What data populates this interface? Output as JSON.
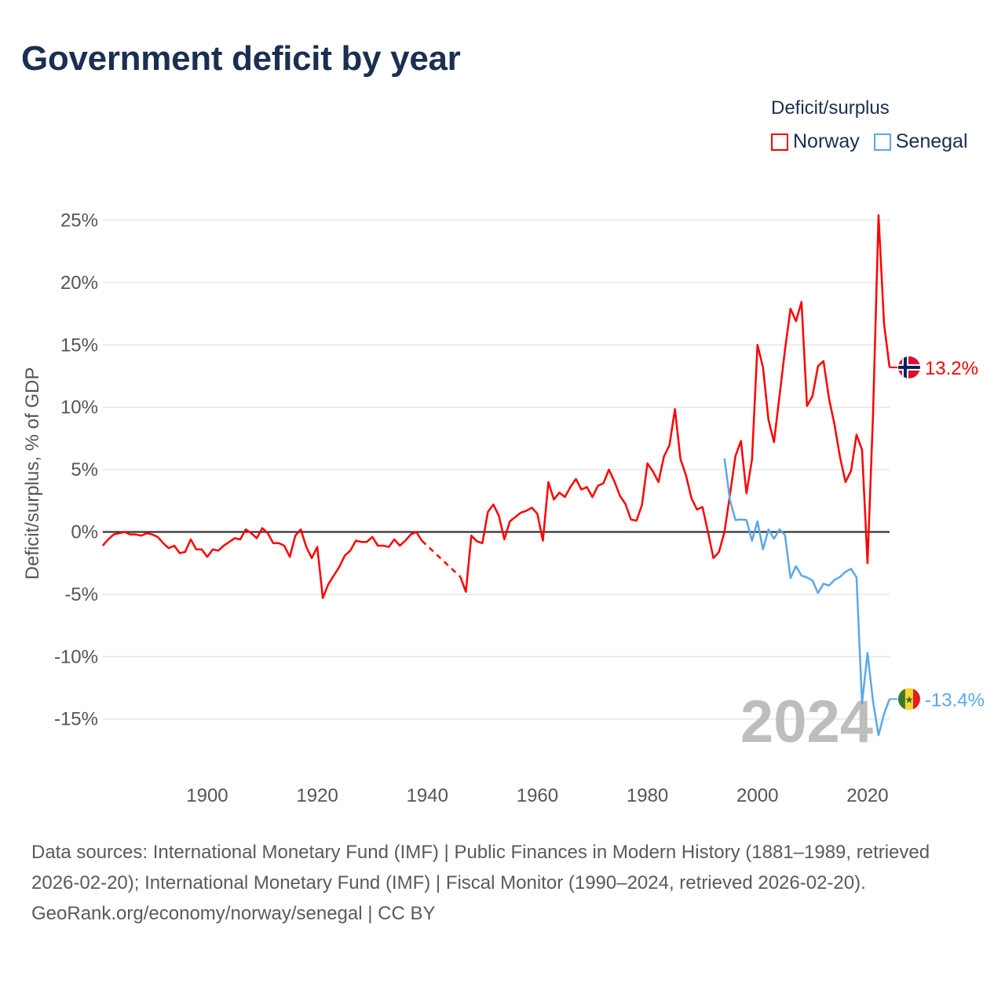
{
  "title": "Government deficit by year",
  "legend": {
    "title": "Deficit/surplus",
    "items": [
      {
        "name": "Norway",
        "color": "#ff0000"
      },
      {
        "name": "Senegal",
        "color": "#5aa8ea"
      }
    ]
  },
  "footer": {
    "sources": "Data sources: International Monetary Fund (IMF) | Public Finances in Modern History (1881–1989, retrieved 2026-02-20); International Monetary Fund (IMF) | Fiscal Monitor (1990–2024, retrieved 2026-02-20).",
    "credit": "GeoRank.org/economy/norway/senegal | CC BY"
  },
  "chart_data": {
    "type": "line",
    "title": "Government deficit by year",
    "xlabel": "",
    "ylabel": "Deficit/surplus, % of GDP",
    "xlim": [
      1881,
      2024
    ],
    "ylim": [
      -19,
      26
    ],
    "x_ticks": [
      1900,
      1920,
      1940,
      1960,
      1980,
      2000,
      2020
    ],
    "y_ticks": [
      25,
      20,
      15,
      10,
      5,
      0,
      -5,
      -10,
      -15
    ],
    "y_tick_labels": [
      "25%",
      "20%",
      "15%",
      "10%",
      "5%",
      "0%",
      "-5%",
      "-10%",
      "-15%"
    ],
    "x_tick_labels": [
      "1900",
      "1920",
      "1940",
      "1960",
      "1980",
      "2000",
      "2020"
    ],
    "grid": true,
    "legend_position": "top-right",
    "year_watermark": "2024",
    "series": [
      {
        "name": "Norway",
        "color": "#ff0000",
        "end_label": "13.2%",
        "start_year": 1881,
        "values": [
          -1.1,
          -0.6,
          -0.2,
          -0.1,
          0.0,
          -0.2,
          -0.2,
          -0.3,
          -0.1,
          -0.2,
          -0.4,
          -0.9,
          -1.3,
          -1.1,
          -1.7,
          -1.6,
          -0.6,
          -1.4,
          -1.4,
          -2.0,
          -1.4,
          -1.5,
          -1.1,
          -0.8,
          -0.5,
          -0.6,
          0.2,
          -0.1,
          -0.5,
          0.3,
          -0.1,
          -0.9,
          -0.9,
          -1.1,
          -2.0,
          -0.3,
          0.2,
          -1.2,
          -2.1,
          -1.2,
          -5.3,
          -4.2,
          -3.5,
          -2.8,
          -1.9,
          -1.5,
          -0.7,
          -0.8,
          -0.8,
          -0.4,
          -1.1,
          -1.1,
          -1.2,
          -0.6,
          -1.1,
          -0.7,
          -0.2,
          0.0,
          -0.7,
          null,
          null,
          null,
          null,
          null,
          null,
          -3.6,
          -4.8,
          -0.3,
          -0.75,
          -0.9,
          1.6,
          2.2,
          1.3,
          -0.6,
          0.85,
          1.2,
          1.55,
          1.7,
          1.95,
          1.45,
          -0.7,
          4.0,
          2.6,
          3.15,
          2.8,
          3.6,
          4.25,
          3.4,
          3.6,
          2.8,
          3.7,
          3.9,
          5.0,
          4.05,
          2.9,
          2.25,
          1.0,
          0.9,
          2.15,
          5.5,
          4.85,
          4.0,
          6.05,
          6.95,
          9.85,
          5.85,
          4.55,
          2.7,
          1.8,
          2.0,
          0.0,
          -2.1,
          -1.6,
          0.0,
          3.0,
          6.1,
          7.3,
          3.1,
          5.8,
          15.0,
          13.2,
          9.0,
          7.2,
          10.9,
          14.6,
          17.9,
          16.9,
          18.45,
          10.1,
          10.9,
          13.3,
          13.7,
          10.7,
          8.6,
          6.0,
          4.0,
          4.9,
          7.8,
          6.6,
          -2.5,
          9.4,
          25.4,
          16.7,
          13.2
        ]
      },
      {
        "name": "Senegal",
        "color": "#5aa8ea",
        "end_label": "-13.4%",
        "start_year": 1994,
        "values": [
          5.9,
          2.55,
          0.95,
          1.0,
          0.95,
          -0.7,
          0.85,
          -1.4,
          0.2,
          -0.55,
          0.2,
          -0.25,
          -3.7,
          -2.75,
          -3.5,
          -3.65,
          -3.9,
          -4.9,
          -4.15,
          -4.3,
          -3.85,
          -3.6,
          -3.2,
          -2.95,
          -3.65,
          -13.75,
          -9.7,
          -13.6,
          -16.3,
          -14.6,
          -13.4
        ]
      }
    ]
  }
}
